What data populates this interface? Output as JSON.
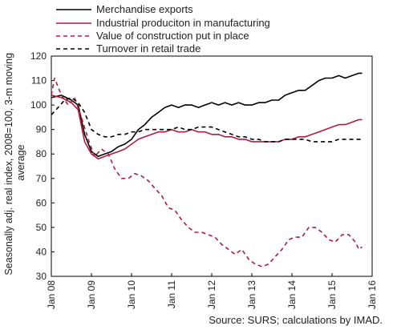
{
  "chart_data": {
    "type": "line",
    "ylabel_lines": [
      "Seasonally adj. real index, 2008=100, 3-m moving",
      "average"
    ],
    "ylim": [
      30,
      120
    ],
    "yticks": [
      30,
      40,
      50,
      60,
      70,
      80,
      90,
      100,
      110,
      120
    ],
    "xlim": [
      2008,
      2016
    ],
    "xticks": [
      {
        "x": 2008,
        "label": "Jan 08"
      },
      {
        "x": 2009,
        "label": "Jan 09"
      },
      {
        "x": 2010,
        "label": "Jan 10"
      },
      {
        "x": 2011,
        "label": "Jan 11"
      },
      {
        "x": 2012,
        "label": "Jan 12"
      },
      {
        "x": 2013,
        "label": "Jan 13"
      },
      {
        "x": 2014,
        "label": "Jan 14"
      },
      {
        "x": 2015,
        "label": "Jan 15"
      },
      {
        "x": 2016,
        "label": "Jan 16"
      }
    ],
    "source": "Source: SURS; calculations by IMAD.",
    "grid": false,
    "legend_position": "top",
    "series": [
      {
        "name": "Merchandise exports",
        "color": "#000000",
        "style": "solid",
        "points": [
          [
            2008.0,
            103
          ],
          [
            2008.25,
            104
          ],
          [
            2008.5,
            102
          ],
          [
            2008.67,
            100
          ],
          [
            2008.83,
            88
          ],
          [
            2009.0,
            81
          ],
          [
            2009.17,
            79
          ],
          [
            2009.33,
            80
          ],
          [
            2009.5,
            81
          ],
          [
            2009.67,
            83
          ],
          [
            2009.83,
            84
          ],
          [
            2010.0,
            86
          ],
          [
            2010.17,
            90
          ],
          [
            2010.33,
            92
          ],
          [
            2010.5,
            95
          ],
          [
            2010.67,
            97
          ],
          [
            2010.83,
            99
          ],
          [
            2011.0,
            100
          ],
          [
            2011.17,
            99
          ],
          [
            2011.33,
            100
          ],
          [
            2011.5,
            100
          ],
          [
            2011.67,
            99
          ],
          [
            2011.83,
            100
          ],
          [
            2012.0,
            101
          ],
          [
            2012.17,
            100
          ],
          [
            2012.33,
            101
          ],
          [
            2012.5,
            100
          ],
          [
            2012.67,
            101
          ],
          [
            2012.83,
            100
          ],
          [
            2013.0,
            100
          ],
          [
            2013.17,
            101
          ],
          [
            2013.33,
            101
          ],
          [
            2013.5,
            102
          ],
          [
            2013.67,
            102
          ],
          [
            2013.83,
            104
          ],
          [
            2014.0,
            105
          ],
          [
            2014.17,
            106
          ],
          [
            2014.33,
            106
          ],
          [
            2014.5,
            108
          ],
          [
            2014.67,
            110
          ],
          [
            2014.83,
            111
          ],
          [
            2015.0,
            111
          ],
          [
            2015.17,
            112
          ],
          [
            2015.33,
            111
          ],
          [
            2015.5,
            112
          ],
          [
            2015.67,
            113
          ],
          [
            2015.75,
            113
          ]
        ]
      },
      {
        "name": "Industrial produciton in manufacturing",
        "color": "#b01c3f",
        "style": "solid",
        "points": [
          [
            2008.0,
            104
          ],
          [
            2008.25,
            103
          ],
          [
            2008.5,
            101
          ],
          [
            2008.67,
            98
          ],
          [
            2008.83,
            85
          ],
          [
            2009.0,
            80
          ],
          [
            2009.17,
            78
          ],
          [
            2009.33,
            79
          ],
          [
            2009.5,
            80
          ],
          [
            2009.67,
            81
          ],
          [
            2009.83,
            82
          ],
          [
            2010.0,
            84
          ],
          [
            2010.17,
            86
          ],
          [
            2010.33,
            87
          ],
          [
            2010.5,
            88
          ],
          [
            2010.67,
            89
          ],
          [
            2010.83,
            89
          ],
          [
            2011.0,
            90
          ],
          [
            2011.17,
            89
          ],
          [
            2011.33,
            89
          ],
          [
            2011.5,
            90
          ],
          [
            2011.67,
            89
          ],
          [
            2011.83,
            89
          ],
          [
            2012.0,
            88
          ],
          [
            2012.17,
            88
          ],
          [
            2012.33,
            87
          ],
          [
            2012.5,
            87
          ],
          [
            2012.67,
            86
          ],
          [
            2012.83,
            86
          ],
          [
            2013.0,
            85
          ],
          [
            2013.17,
            85
          ],
          [
            2013.33,
            85
          ],
          [
            2013.5,
            85
          ],
          [
            2013.67,
            85
          ],
          [
            2013.83,
            86
          ],
          [
            2014.0,
            86
          ],
          [
            2014.17,
            87
          ],
          [
            2014.33,
            87
          ],
          [
            2014.5,
            88
          ],
          [
            2014.67,
            89
          ],
          [
            2014.83,
            90
          ],
          [
            2015.0,
            91
          ],
          [
            2015.17,
            92
          ],
          [
            2015.33,
            92
          ],
          [
            2015.5,
            93
          ],
          [
            2015.67,
            94
          ],
          [
            2015.75,
            94
          ]
        ]
      },
      {
        "name": "Value of construction put in place",
        "color": "#b01c3f",
        "style": "dashed",
        "points": [
          [
            2008.0,
            104
          ],
          [
            2008.08,
            111
          ],
          [
            2008.25,
            104
          ],
          [
            2008.42,
            100
          ],
          [
            2008.58,
            103
          ],
          [
            2008.75,
            95
          ],
          [
            2008.92,
            86
          ],
          [
            2009.08,
            79
          ],
          [
            2009.25,
            82
          ],
          [
            2009.42,
            80
          ],
          [
            2009.58,
            74
          ],
          [
            2009.75,
            70
          ],
          [
            2009.92,
            70
          ],
          [
            2010.08,
            72
          ],
          [
            2010.25,
            71
          ],
          [
            2010.42,
            69
          ],
          [
            2010.58,
            66
          ],
          [
            2010.75,
            63
          ],
          [
            2010.92,
            58
          ],
          [
            2011.08,
            57
          ],
          [
            2011.25,
            53
          ],
          [
            2011.42,
            50
          ],
          [
            2011.58,
            48
          ],
          [
            2011.75,
            48
          ],
          [
            2011.92,
            47
          ],
          [
            2012.08,
            46
          ],
          [
            2012.25,
            43
          ],
          [
            2012.42,
            41
          ],
          [
            2012.58,
            39
          ],
          [
            2012.75,
            41
          ],
          [
            2012.92,
            37
          ],
          [
            2013.08,
            35
          ],
          [
            2013.25,
            34
          ],
          [
            2013.42,
            35
          ],
          [
            2013.58,
            38
          ],
          [
            2013.75,
            41
          ],
          [
            2013.92,
            45
          ],
          [
            2014.08,
            46
          ],
          [
            2014.25,
            46
          ],
          [
            2014.42,
            50
          ],
          [
            2014.58,
            50
          ],
          [
            2014.75,
            48
          ],
          [
            2014.92,
            45
          ],
          [
            2015.08,
            44
          ],
          [
            2015.25,
            47
          ],
          [
            2015.42,
            47
          ],
          [
            2015.58,
            44
          ],
          [
            2015.67,
            41
          ],
          [
            2015.75,
            42
          ]
        ]
      },
      {
        "name": "Turnover in retail trade",
        "color": "#000000",
        "style": "dashed",
        "points": [
          [
            2008.0,
            96
          ],
          [
            2008.17,
            99
          ],
          [
            2008.33,
            102
          ],
          [
            2008.5,
            103
          ],
          [
            2008.67,
            101
          ],
          [
            2008.83,
            97
          ],
          [
            2009.0,
            90
          ],
          [
            2009.17,
            88
          ],
          [
            2009.33,
            87
          ],
          [
            2009.5,
            87
          ],
          [
            2009.67,
            88
          ],
          [
            2009.83,
            88
          ],
          [
            2010.0,
            89
          ],
          [
            2010.17,
            89
          ],
          [
            2010.33,
            90
          ],
          [
            2010.5,
            90
          ],
          [
            2010.67,
            90
          ],
          [
            2010.83,
            90
          ],
          [
            2011.0,
            90
          ],
          [
            2011.17,
            91
          ],
          [
            2011.33,
            90
          ],
          [
            2011.5,
            90
          ],
          [
            2011.67,
            91
          ],
          [
            2011.83,
            91
          ],
          [
            2012.0,
            91
          ],
          [
            2012.17,
            90
          ],
          [
            2012.33,
            89
          ],
          [
            2012.5,
            88
          ],
          [
            2012.67,
            87
          ],
          [
            2012.83,
            87
          ],
          [
            2013.0,
            86
          ],
          [
            2013.17,
            86
          ],
          [
            2013.33,
            85
          ],
          [
            2013.5,
            85
          ],
          [
            2013.67,
            85
          ],
          [
            2013.83,
            86
          ],
          [
            2014.0,
            86
          ],
          [
            2014.17,
            86
          ],
          [
            2014.33,
            86
          ],
          [
            2014.5,
            85
          ],
          [
            2014.67,
            85
          ],
          [
            2014.83,
            85
          ],
          [
            2015.0,
            85
          ],
          [
            2015.17,
            86
          ],
          [
            2015.33,
            86
          ],
          [
            2015.5,
            86
          ],
          [
            2015.67,
            86
          ],
          [
            2015.75,
            86
          ]
        ]
      }
    ]
  }
}
